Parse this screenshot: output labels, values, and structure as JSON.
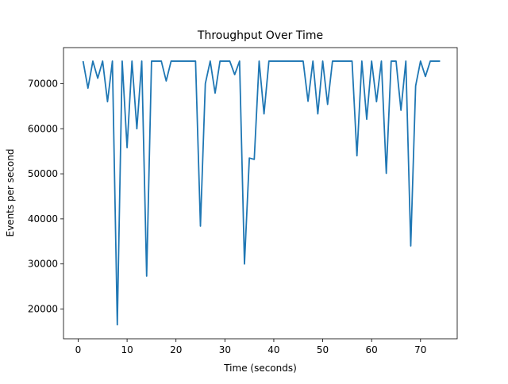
{
  "chart_data": {
    "type": "line",
    "title": "Throughput Over Time",
    "xlabel": "Time (seconds)",
    "ylabel": "Events per second",
    "xlim": [
      -3,
      77.5
    ],
    "ylim": [
      13400,
      78000
    ],
    "grid": false,
    "xticks": [
      0,
      10,
      20,
      30,
      40,
      50,
      60,
      70
    ],
    "yticks": [
      20000,
      30000,
      40000,
      50000,
      60000,
      70000
    ],
    "series": [
      {
        "color": "#1f77b4",
        "x": [
          1,
          2,
          3,
          4,
          5,
          6,
          7,
          8,
          9,
          10,
          11,
          12,
          13,
          14,
          15,
          16,
          17,
          18,
          19,
          20,
          21,
          22,
          23,
          24,
          25,
          26,
          27,
          28,
          29,
          30,
          31,
          32,
          33,
          34,
          35,
          36,
          37,
          38,
          39,
          40,
          41,
          42,
          43,
          44,
          45,
          46,
          47,
          48,
          49,
          50,
          51,
          52,
          53,
          54,
          55,
          56,
          57,
          58,
          59,
          60,
          61,
          62,
          63,
          64,
          65,
          66,
          67,
          68,
          69,
          70,
          71,
          72,
          73,
          74
        ],
        "y": [
          75000,
          69000,
          75000,
          71200,
          75000,
          66000,
          75000,
          16500,
          75000,
          55800,
          75000,
          60000,
          75000,
          27300,
          75000,
          75000,
          75000,
          70600,
          75000,
          75000,
          75000,
          75000,
          75000,
          75000,
          38400,
          70000,
          75000,
          67900,
          75000,
          75000,
          75000,
          72000,
          75000,
          30000,
          53500,
          53200,
          75000,
          63300,
          75000,
          75000,
          75000,
          75000,
          75000,
          75000,
          75000,
          75000,
          66100,
          75000,
          63300,
          75000,
          65400,
          75000,
          75000,
          75000,
          75000,
          75000,
          54000,
          75000,
          62100,
          75000,
          66000,
          75000,
          50100,
          75000,
          75000,
          64100,
          75000,
          34000,
          69500,
          75000,
          71600,
          75000,
          75000,
          75000
        ]
      }
    ]
  }
}
